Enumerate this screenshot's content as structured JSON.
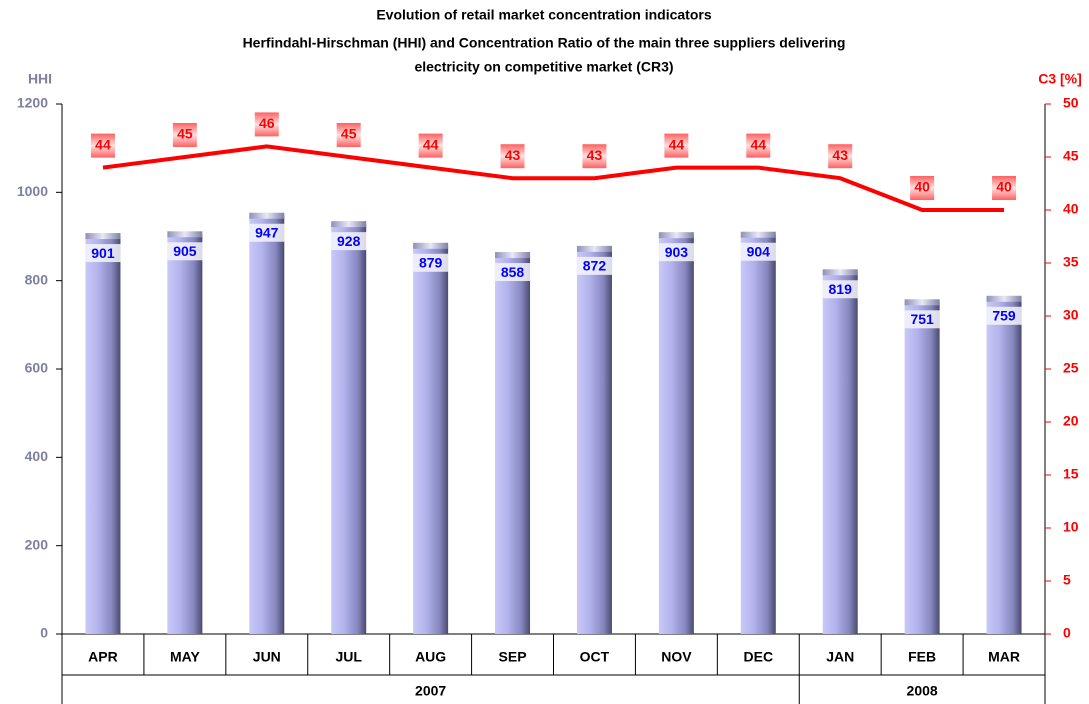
{
  "chart_data": {
    "type": "bar-line",
    "title": [
      "Evolution of retail market concentration indicators",
      "Herfindahl-Hirschman (HHI) and Concentration Ratio of the main three suppliers delivering",
      "electricity on competitive market (CR3)"
    ],
    "ylabel": "HHI",
    "y2label": "C3 [%]",
    "categories": [
      "APR",
      "MAY",
      "JUN",
      "JUL",
      "AUG",
      "SEP",
      "OCT",
      "NOV",
      "DEC",
      "JAN",
      "FEB",
      "MAR"
    ],
    "years": [
      "2007",
      "2007",
      "2007",
      "2007",
      "2007",
      "2007",
      "2007",
      "2007",
      "2007",
      "2008",
      "2008",
      "2008"
    ],
    "series": [
      {
        "type": "bar",
        "color": "#9a9ae0",
        "values": [
          901,
          905,
          947,
          928,
          879,
          858,
          872,
          903,
          904,
          819,
          751,
          759
        ]
      },
      {
        "type": "line",
        "axis": "y2",
        "color": "#ff0000",
        "values": [
          44,
          45,
          46,
          45,
          44,
          43,
          43,
          44,
          44,
          43,
          40,
          40
        ]
      }
    ],
    "ylim": [
      0,
      1200
    ],
    "yticks": [
      0,
      200,
      400,
      600,
      800,
      1000,
      1200
    ],
    "y2lim": [
      0,
      50
    ],
    "y2ticks": [
      0,
      5,
      10,
      15,
      20,
      25,
      30,
      35,
      40,
      45,
      50
    ]
  }
}
